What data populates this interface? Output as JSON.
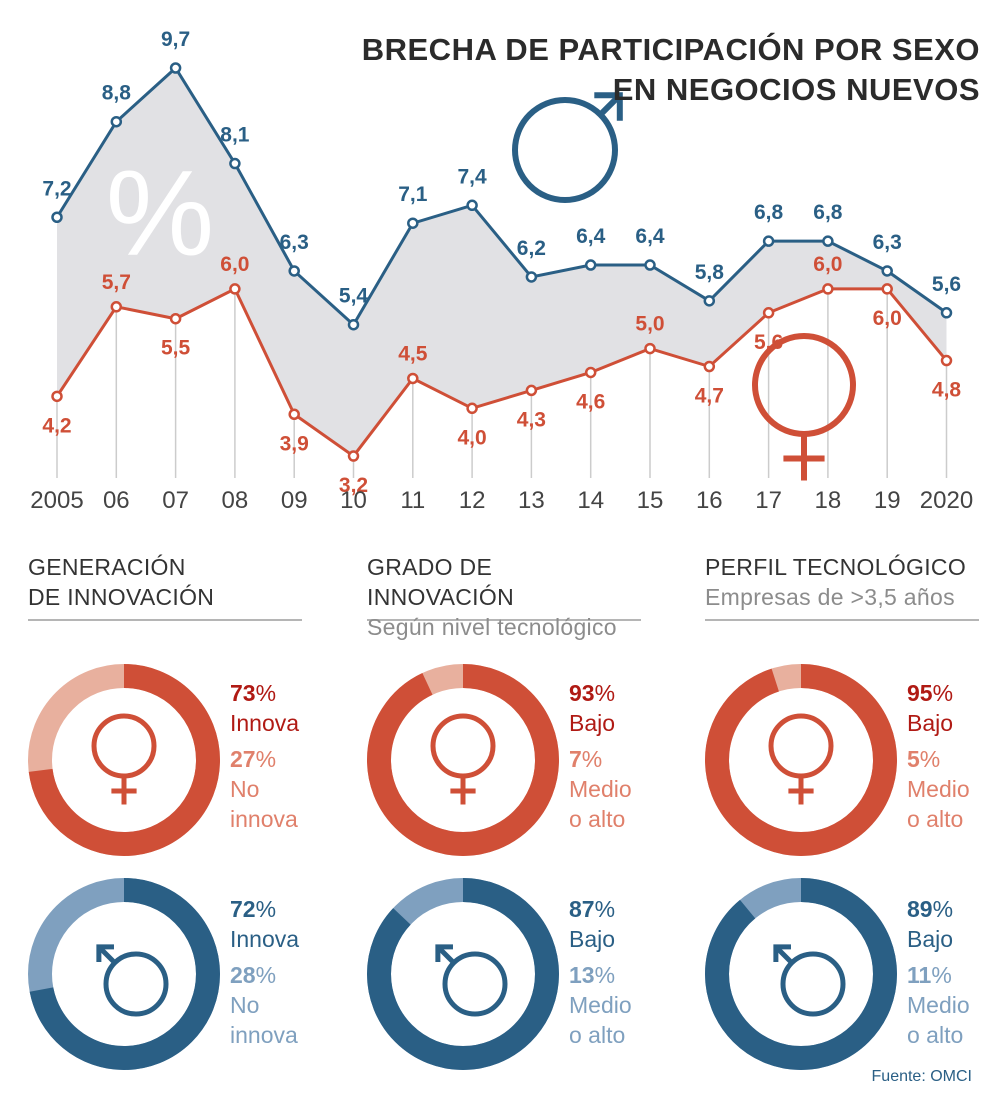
{
  "title": {
    "line1": "BRECHA DE PARTICIPACIÓN POR SEXO",
    "line2": "EN NEGOCIOS NUEVOS"
  },
  "colors": {
    "male": "#2a5f85",
    "female": "#cf4f37",
    "male_light": "#7fa0bf",
    "female_light": "#e8b09e",
    "gap_fill": "#e1e1e4",
    "gridline": "#cccccc",
    "text_dark": "#333333",
    "text_muted": "#8c8c8c"
  },
  "chart_data": {
    "type": "line",
    "categories": [
      "2005",
      "06",
      "07",
      "08",
      "09",
      "10",
      "11",
      "12",
      "13",
      "14",
      "15",
      "16",
      "17",
      "18",
      "19",
      "2020"
    ],
    "series": [
      {
        "key": "male",
        "icon": "male-symbol-icon",
        "values": [
          7.2,
          8.8,
          9.7,
          8.1,
          6.3,
          5.4,
          7.1,
          7.4,
          6.2,
          6.4,
          6.4,
          5.8,
          6.8,
          6.8,
          6.3,
          5.6
        ],
        "labels": [
          "7,2",
          "8,8",
          "9,7",
          "8,1",
          "6,3",
          "5,4",
          "7,1",
          "7,4",
          "6,2",
          "6,4",
          "6,4",
          "5,8",
          "6,8",
          "6,8",
          "6,3",
          "5,6"
        ]
      },
      {
        "key": "female",
        "icon": "female-symbol-icon",
        "values": [
          4.2,
          5.7,
          5.5,
          6.0,
          3.9,
          3.2,
          4.5,
          4.0,
          4.3,
          4.6,
          5.0,
          4.7,
          5.6,
          6.0,
          6.0,
          4.8
        ],
        "labels": [
          "4,2",
          "5,7",
          "5,5",
          "6,0",
          "3,9",
          "3,2",
          "4,5",
          "4,0",
          "4,3",
          "4,6",
          "5,0",
          "4,7",
          "5,6",
          "6,0",
          "6,0",
          "4,8"
        ]
      }
    ],
    "gap_symbol": "%",
    "unit": "%",
    "legend": "none",
    "grid": false
  },
  "sections": [
    {
      "key": "generacion",
      "title_lines": [
        "GENERACIÓN",
        "DE INNOVACIÓN"
      ],
      "subtitle": "",
      "female": {
        "primary": {
          "pct": "73",
          "label_lines": [
            "Innova"
          ],
          "value": 73
        },
        "secondary": {
          "pct": "27",
          "label_lines": [
            "No",
            "innova"
          ],
          "value": 27
        }
      },
      "male": {
        "primary": {
          "pct": "72",
          "label_lines": [
            "Innova"
          ],
          "value": 72
        },
        "secondary": {
          "pct": "28",
          "label_lines": [
            "No",
            "innova"
          ],
          "value": 28
        }
      }
    },
    {
      "key": "grado",
      "title_lines": [
        "GRADO DE INNOVACIÓN"
      ],
      "subtitle": "Según nivel tecnológico",
      "female": {
        "primary": {
          "pct": "93",
          "label_lines": [
            "Bajo"
          ],
          "value": 93
        },
        "secondary": {
          "pct": "7",
          "label_lines": [
            "Medio",
            "o alto"
          ],
          "value": 7
        }
      },
      "male": {
        "primary": {
          "pct": "87",
          "label_lines": [
            "Bajo"
          ],
          "value": 87
        },
        "secondary": {
          "pct": "13",
          "label_lines": [
            "Medio",
            "o alto"
          ],
          "value": 13
        }
      }
    },
    {
      "key": "perfil",
      "title_lines": [
        "PERFIL TECNOLÓGICO"
      ],
      "subtitle": "Empresas de >3,5 años",
      "female": {
        "primary": {
          "pct": "95",
          "label_lines": [
            "Bajo"
          ],
          "value": 95
        },
        "secondary": {
          "pct": "5",
          "label_lines": [
            "Medio",
            "o alto"
          ],
          "value": 5
        }
      },
      "male": {
        "primary": {
          "pct": "89",
          "label_lines": [
            "Bajo"
          ],
          "value": 89
        },
        "secondary": {
          "pct": "11",
          "label_lines": [
            "Medio",
            "o alto"
          ],
          "value": 11
        }
      }
    }
  ],
  "percent_sign": "%",
  "source": "Fuente: OMCI"
}
